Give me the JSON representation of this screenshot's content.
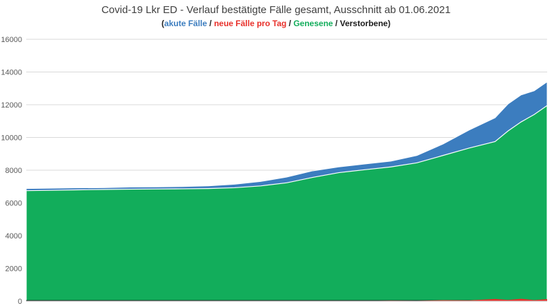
{
  "chart_data": {
    "type": "area",
    "title": "Covid-19 Lkr ED - Verlauf bestätigte Fälle gesamt, Ausschnitt ab 01.06.2021",
    "legend": {
      "open": "(",
      "sep": " / ",
      "close": ")",
      "items": [
        {
          "name": "akute Fälle",
          "color": "#3c7dbf"
        },
        {
          "name": "neue Fälle pro Tag",
          "color": "#e8302a"
        },
        {
          "name": "Genesene",
          "color": "#12ad5b"
        },
        {
          "name": "Verstorbene",
          "color": "#1a1a1a"
        }
      ],
      "placement": "top-center"
    },
    "xlabel": "",
    "ylabel": "",
    "ylim": [
      0,
      16000
    ],
    "yticks": [
      0,
      2000,
      4000,
      6000,
      8000,
      10000,
      12000,
      14000,
      16000
    ],
    "grid": true,
    "x": [
      0,
      10,
      20,
      30,
      40,
      50,
      60,
      70,
      80,
      90,
      100,
      110,
      120,
      130,
      140,
      150,
      160,
      170,
      180,
      185,
      190,
      195,
      200
    ],
    "series": [
      {
        "name": "Genesene",
        "color": "#12ad5b",
        "values": [
          6750,
          6770,
          6800,
          6820,
          6840,
          6850,
          6860,
          6880,
          6930,
          7040,
          7230,
          7560,
          7850,
          8030,
          8200,
          8450,
          8900,
          9350,
          9750,
          10400,
          10950,
          11400,
          11950
        ]
      },
      {
        "name": "akute Fälle",
        "color": "#3c7dbf",
        "values": [
          130,
          130,
          120,
          110,
          130,
          130,
          140,
          160,
          210,
          270,
          350,
          400,
          350,
          350,
          350,
          450,
          700,
          1100,
          1450,
          1650,
          1650,
          1450,
          1450
        ]
      },
      {
        "name": "Verstorbene",
        "color": "#1a1a1a",
        "values": [
          60,
          60,
          60,
          60,
          60,
          60,
          60,
          60,
          60,
          60,
          60,
          60,
          60,
          60,
          60,
          60,
          60,
          60,
          60,
          60,
          60,
          60,
          60
        ]
      },
      {
        "name": "neue Fälle pro Tag",
        "color": "#e8302a",
        "values": [
          0,
          5,
          3,
          2,
          4,
          3,
          5,
          8,
          10,
          15,
          20,
          25,
          20,
          25,
          30,
          40,
          60,
          90,
          130,
          150,
          140,
          130,
          120
        ]
      }
    ]
  }
}
